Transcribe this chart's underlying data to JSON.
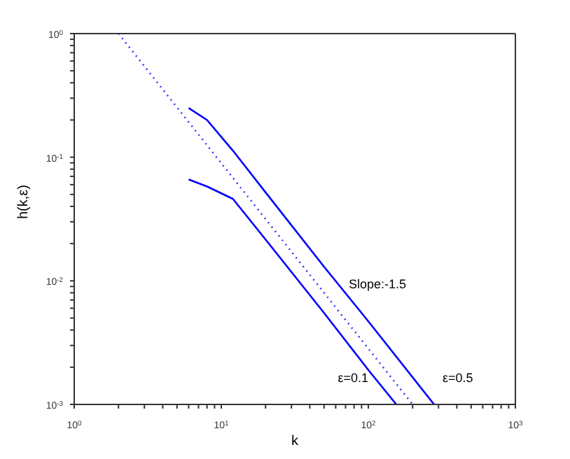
{
  "chart_data": {
    "type": "line",
    "xlabel": "k",
    "ylabel": "h(k,ε)",
    "log": "xy",
    "marker": "none",
    "xlim": [
      1,
      1000
    ],
    "ylim": [
      0.001,
      1
    ],
    "xticks": [
      {
        "value": 1,
        "label": "10$^{0}$"
      },
      {
        "value": 2,
        "label": null
      },
      {
        "value": 3,
        "label": null
      },
      {
        "value": 4,
        "label": null
      },
      {
        "value": 5,
        "label": null
      },
      {
        "value": 6,
        "label": null
      },
      {
        "value": 7,
        "label": null
      },
      {
        "value": 8,
        "label": null
      },
      {
        "value": 9,
        "label": null
      },
      {
        "value": 10,
        "label": "10$^{1}$"
      },
      {
        "value": 20,
        "label": null
      },
      {
        "value": 30,
        "label": null
      },
      {
        "value": 40,
        "label": null
      },
      {
        "value": 50,
        "label": null
      },
      {
        "value": 60,
        "label": null
      },
      {
        "value": 70,
        "label": null
      },
      {
        "value": 80,
        "label": null
      },
      {
        "value": 90,
        "label": null
      },
      {
        "value": 100,
        "label": "10$^{2}$"
      },
      {
        "value": 200,
        "label": null
      },
      {
        "value": 300,
        "label": null
      },
      {
        "value": 400,
        "label": null
      },
      {
        "value": 500,
        "label": null
      },
      {
        "value": 600,
        "label": null
      },
      {
        "value": 700,
        "label": null
      },
      {
        "value": 800,
        "label": null
      },
      {
        "value": 900,
        "label": null
      },
      {
        "value": 1000,
        "label": "10$^{3}$"
      }
    ],
    "yticks": [
      {
        "value": 0.001,
        "label": "10$^{-3}$"
      },
      {
        "value": 0.002,
        "label": null
      },
      {
        "value": 0.003,
        "label": null
      },
      {
        "value": 0.004,
        "label": null
      },
      {
        "value": 0.005,
        "label": null
      },
      {
        "value": 0.006,
        "label": null
      },
      {
        "value": 0.007,
        "label": null
      },
      {
        "value": 0.008,
        "label": null
      },
      {
        "value": 0.009,
        "label": null
      },
      {
        "value": 0.01,
        "label": "10$^{-2}$"
      },
      {
        "value": 0.02,
        "label": null
      },
      {
        "value": 0.03,
        "label": null
      },
      {
        "value": 0.04,
        "label": null
      },
      {
        "value": 0.05,
        "label": null
      },
      {
        "value": 0.06,
        "label": null
      },
      {
        "value": 0.07,
        "label": null
      },
      {
        "value": 0.08,
        "label": null
      },
      {
        "value": 0.09,
        "label": null
      },
      {
        "value": 0.1,
        "label": "10$^{-1}$"
      },
      {
        "value": 0.2,
        "label": null
      },
      {
        "value": 0.3,
        "label": null
      },
      {
        "value": 0.4,
        "label": null
      },
      {
        "value": 0.5,
        "label": null
      },
      {
        "value": 0.6,
        "label": null
      },
      {
        "value": 0.7,
        "label": null
      },
      {
        "value": 0.8,
        "label": null
      },
      {
        "value": 0.9,
        "label": null
      },
      {
        "value": 1,
        "label": "10$^{0}$"
      }
    ],
    "series": [
      {
        "name": "ε=0.5",
        "color": "#0000ff",
        "line_style": "solid",
        "x": [
          6,
          8,
          12,
          20,
          50,
          100,
          280
        ],
        "values": [
          0.25,
          0.2,
          0.113,
          0.052,
          0.013,
          0.0047,
          0.001
        ]
      },
      {
        "name": "ε=0.1",
        "color": "#0000ff",
        "line_style": "solid",
        "x": [
          6,
          8,
          12,
          20,
          50,
          100,
          155
        ],
        "values": [
          0.066,
          0.058,
          0.046,
          0.0216,
          0.0055,
          0.0019,
          0.001
        ]
      },
      {
        "color": "#3333ff",
        "line_style": "dotted",
        "x": [
          2,
          200
        ],
        "values": [
          1,
          0.001
        ]
      }
    ],
    "annotations": [
      "Slope:-1.5"
    ]
  }
}
